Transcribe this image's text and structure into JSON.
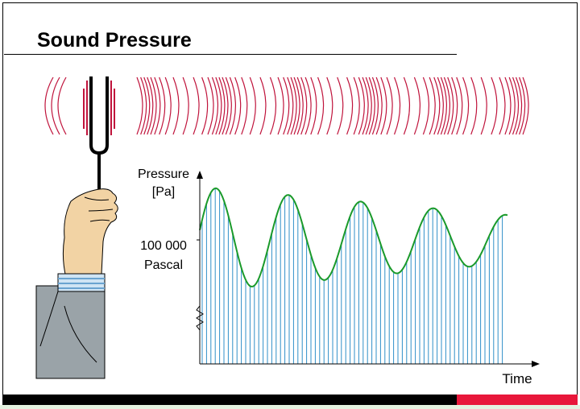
{
  "title": "Sound Pressure",
  "axis": {
    "y_label": [
      "Pressure",
      "[Pa]"
    ],
    "reference_label": [
      "100 000",
      "Pascal"
    ],
    "x_label": "Time"
  }
}
